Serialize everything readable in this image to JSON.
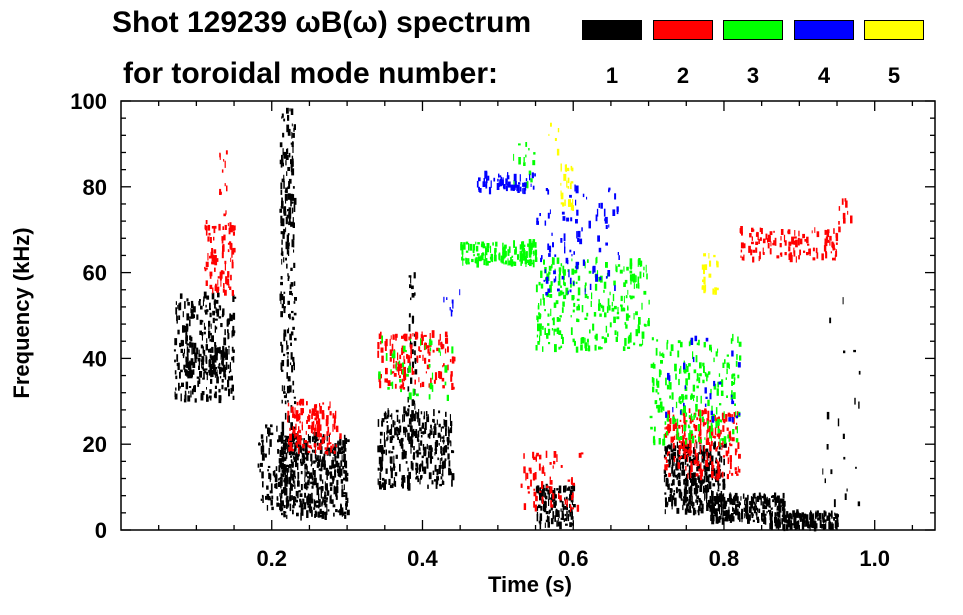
{
  "chart_data": {
    "type": "scatter",
    "title_line1": "Shot 129239 ωB(ω) spectrum",
    "title_line2": "for toroidal mode number:",
    "xlabel": "Time (s)",
    "ylabel": "Frequency (kHz)",
    "xlim": [
      0.0,
      1.08
    ],
    "ylim": [
      0,
      100
    ],
    "xticks": [
      0.2,
      0.4,
      0.6,
      0.8,
      1.0
    ],
    "xtick_labels": [
      "0.2",
      "0.4",
      "0.6",
      "0.8",
      "1.0"
    ],
    "yticks": [
      0,
      20,
      40,
      60,
      80,
      100
    ],
    "ytick_labels": [
      "0",
      "20",
      "40",
      "60",
      "80",
      "100"
    ],
    "legend": [
      {
        "label": "1",
        "color": "#000000"
      },
      {
        "label": "2",
        "color": "#ff0000"
      },
      {
        "label": "3",
        "color": "#00ff00"
      },
      {
        "label": "4",
        "color": "#0000ff"
      },
      {
        "label": "5",
        "color": "#ffff00"
      }
    ],
    "series": [
      {
        "name": "1",
        "color": "#000000",
        "clusters": [
          {
            "x": [
              0.07,
              0.15
            ],
            "y": [
              30,
              55
            ],
            "density": 260
          },
          {
            "x": [
              0.08,
              0.14
            ],
            "y": [
              36,
              42
            ],
            "density": 80
          },
          {
            "x": [
              0.18,
              0.22
            ],
            "y": [
              5,
              25
            ],
            "density": 90
          },
          {
            "x": [
              0.21,
              0.23
            ],
            "y": [
              10,
              98
            ],
            "density": 220
          },
          {
            "x": [
              0.21,
              0.3
            ],
            "y": [
              3,
              22
            ],
            "density": 420
          },
          {
            "x": [
              0.34,
              0.44
            ],
            "y": [
              10,
              28
            ],
            "density": 320
          },
          {
            "x": [
              0.38,
              0.39
            ],
            "y": [
              20,
              60
            ],
            "density": 40
          },
          {
            "x": [
              0.55,
              0.6
            ],
            "y": [
              1,
              10
            ],
            "density": 120
          },
          {
            "x": [
              0.72,
              0.8
            ],
            "y": [
              4,
              20
            ],
            "density": 360
          },
          {
            "x": [
              0.78,
              0.88
            ],
            "y": [
              2,
              8
            ],
            "density": 220
          },
          {
            "x": [
              0.86,
              0.95
            ],
            "y": [
              0.5,
              4
            ],
            "density": 160
          },
          {
            "x": [
              0.93,
              0.98
            ],
            "y": [
              5,
              55
            ],
            "density": 20
          }
        ]
      },
      {
        "name": "2",
        "color": "#ff0000",
        "clusters": [
          {
            "x": [
              0.11,
              0.15
            ],
            "y": [
              55,
              72
            ],
            "density": 90
          },
          {
            "x": [
              0.13,
              0.14
            ],
            "y": [
              72,
              90
            ],
            "density": 12
          },
          {
            "x": [
              0.22,
              0.29
            ],
            "y": [
              18,
              30
            ],
            "density": 140
          },
          {
            "x": [
              0.34,
              0.44
            ],
            "y": [
              33,
              46
            ],
            "density": 140
          },
          {
            "x": [
              0.53,
              0.61
            ],
            "y": [
              5,
              18
            ],
            "density": 60
          },
          {
            "x": [
              0.72,
              0.82
            ],
            "y": [
              12,
              28
            ],
            "density": 220
          },
          {
            "x": [
              0.82,
              0.95
            ],
            "y": [
              63,
              70
            ],
            "density": 120
          },
          {
            "x": [
              0.95,
              0.97
            ],
            "y": [
              70,
              80
            ],
            "density": 10
          }
        ]
      },
      {
        "name": "3",
        "color": "#00ff00",
        "clusters": [
          {
            "x": [
              0.34,
              0.44
            ],
            "y": [
              30,
              45
            ],
            "density": 40
          },
          {
            "x": [
              0.45,
              0.55
            ],
            "y": [
              62,
              67
            ],
            "density": 140
          },
          {
            "x": [
              0.55,
              0.7
            ],
            "y": [
              42,
              63
            ],
            "density": 260
          },
          {
            "x": [
              0.7,
              0.82
            ],
            "y": [
              20,
              45
            ],
            "density": 220
          },
          {
            "x": [
              0.52,
              0.55
            ],
            "y": [
              80,
              90
            ],
            "density": 15
          }
        ]
      },
      {
        "name": "4",
        "color": "#0000ff",
        "clusters": [
          {
            "x": [
              0.47,
              0.55
            ],
            "y": [
              79,
              83
            ],
            "density": 60
          },
          {
            "x": [
              0.55,
              0.66
            ],
            "y": [
              55,
              80
            ],
            "density": 90
          },
          {
            "x": [
              0.72,
              0.82
            ],
            "y": [
              25,
              45
            ],
            "density": 30
          },
          {
            "x": [
              0.42,
              0.45
            ],
            "y": [
              50,
              56
            ],
            "density": 8
          }
        ]
      },
      {
        "name": "5",
        "color": "#ffff00",
        "clusters": [
          {
            "x": [
              0.58,
              0.6
            ],
            "y": [
              75,
              85
            ],
            "density": 25
          },
          {
            "x": [
              0.77,
              0.79
            ],
            "y": [
              55,
              65
            ],
            "density": 20
          },
          {
            "x": [
              0.56,
              0.58
            ],
            "y": [
              88,
              95
            ],
            "density": 6
          }
        ]
      }
    ]
  }
}
